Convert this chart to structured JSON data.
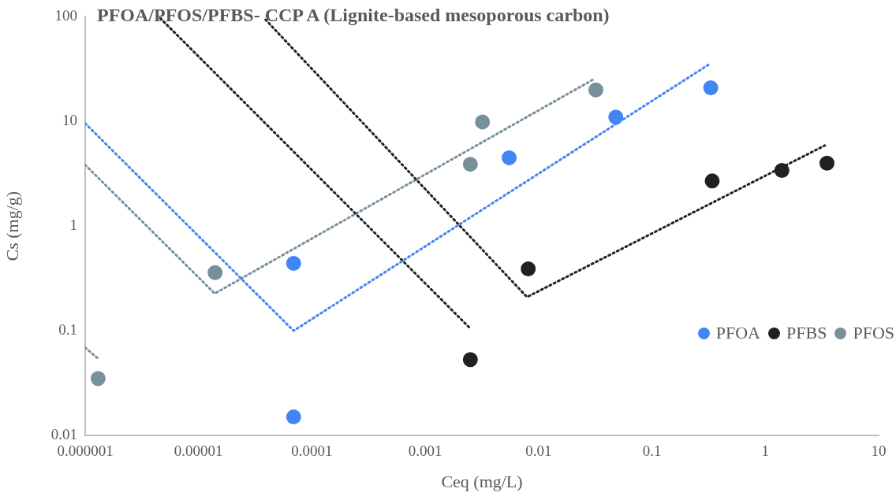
{
  "chart_data": {
    "type": "scatter",
    "title": "PFOA/PFOS/PFBS- CCP A (Lignite-based mesoporous carbon)",
    "xlabel": "Ceq (mg/L)",
    "ylabel": "Cs (mg/g)",
    "log": "xy",
    "legend": "right",
    "marker": "circle",
    "xlim": [
      1e-06,
      10
    ],
    "xticks": [
      {
        "value": 1e-06,
        "label": "0.000001"
      },
      {
        "value": 1e-05,
        "label": "0.00001"
      },
      0.0001,
      0.001,
      0.01,
      0.1,
      1,
      10
    ],
    "ylim": [
      0.01,
      100
    ],
    "yticks": [
      0.01,
      0.1,
      1,
      10,
      100
    ],
    "series": [
      {
        "name": "PFOA",
        "color": "#4285f4",
        "x": [
          6.9e-05,
          6.9e-05,
          0.0055,
          0.048,
          0.33
        ],
        "values": [
          0.44,
          0.015,
          4.5,
          11,
          21
        ]
      },
      {
        "name": "PFBS",
        "color": "#212121",
        "x": [
          0.0025,
          0.0081,
          0.34,
          1.4,
          3.5
        ],
        "values": [
          0.053,
          0.39,
          2.7,
          3.4,
          4.0
        ]
      },
      {
        "name": "PFOS",
        "color": "#78909c",
        "x": [
          1.3e-06,
          1.4e-05,
          0.0025,
          0.0032,
          0.032
        ],
        "values": [
          0.035,
          0.36,
          3.9,
          9.9,
          20
        ]
      },
      {
        "type": "line",
        "color": "#4285f4",
        "line_style": "dotted",
        "marker": "none",
        "x": [
          1e-06,
          6.9e-05,
          0.33
        ],
        "values": [
          9.6,
          0.1,
          36
        ]
      },
      {
        "type": "line",
        "color": "#212121",
        "line_style": "dotted",
        "marker": "none",
        "x": [
          4.6e-06,
          0.0025
        ],
        "values": [
          97,
          0.105
        ]
      },
      {
        "type": "line",
        "color": "#212121",
        "line_style": "dotted",
        "marker": "none",
        "x": [
          3.9e-05,
          0.0079,
          3.35
        ],
        "values": [
          94,
          0.21,
          5.9
        ]
      },
      {
        "type": "line",
        "color": "#78909c",
        "line_style": "dotted",
        "marker": "none",
        "x": [
          1e-06,
          1.39e-05,
          0.0313
        ],
        "values": [
          3.85,
          0.227,
          25.7
        ]
      },
      {
        "type": "line",
        "color": "#78909c",
        "line_style": "dotted",
        "marker": "none",
        "x": [
          1e-06,
          1.28e-06
        ],
        "values": [
          0.069,
          0.055
        ]
      }
    ]
  }
}
